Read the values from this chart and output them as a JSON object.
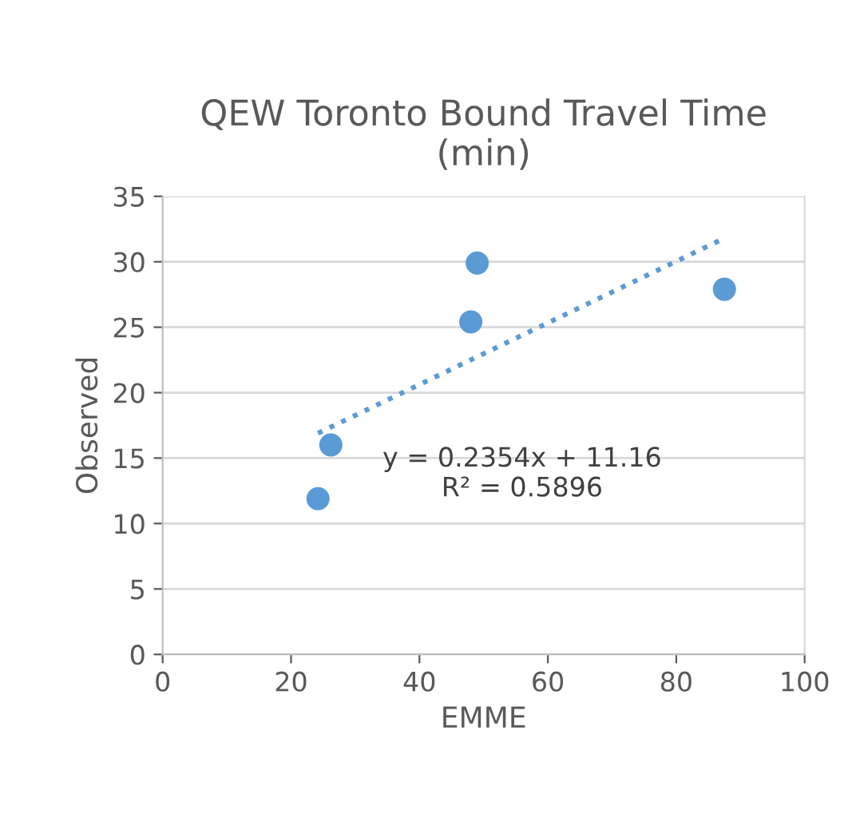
{
  "chart_data": {
    "type": "scatter",
    "title": "QEW Toronto Bound Travel Time\n(min)",
    "xlabel": "EMME",
    "ylabel": "Observed",
    "series": [
      {
        "color": "#5b9bd5",
        "marker": "circle",
        "x": [
          24.2,
          26.2,
          48.0,
          49.0,
          87.5
        ],
        "values": [
          11.9,
          16.0,
          25.4,
          29.9,
          27.9
        ]
      },
      {
        "type": "line",
        "color": "#5b9bd5",
        "line_style": "dotted",
        "marker": "none",
        "x": [
          24.2,
          87.5
        ],
        "values": [
          16.9,
          31.8
        ]
      }
    ],
    "annotations": [
      "y = 0.2354x + 11.16",
      "R² = 0.5896"
    ],
    "xlim": [
      0,
      100
    ],
    "xticks": [
      0,
      20,
      40,
      60,
      80,
      100
    ],
    "ylim": [
      0,
      35
    ],
    "yticks": [
      0,
      5,
      10,
      15,
      20,
      25,
      30,
      35
    ],
    "grid": "y",
    "legend": false
  }
}
